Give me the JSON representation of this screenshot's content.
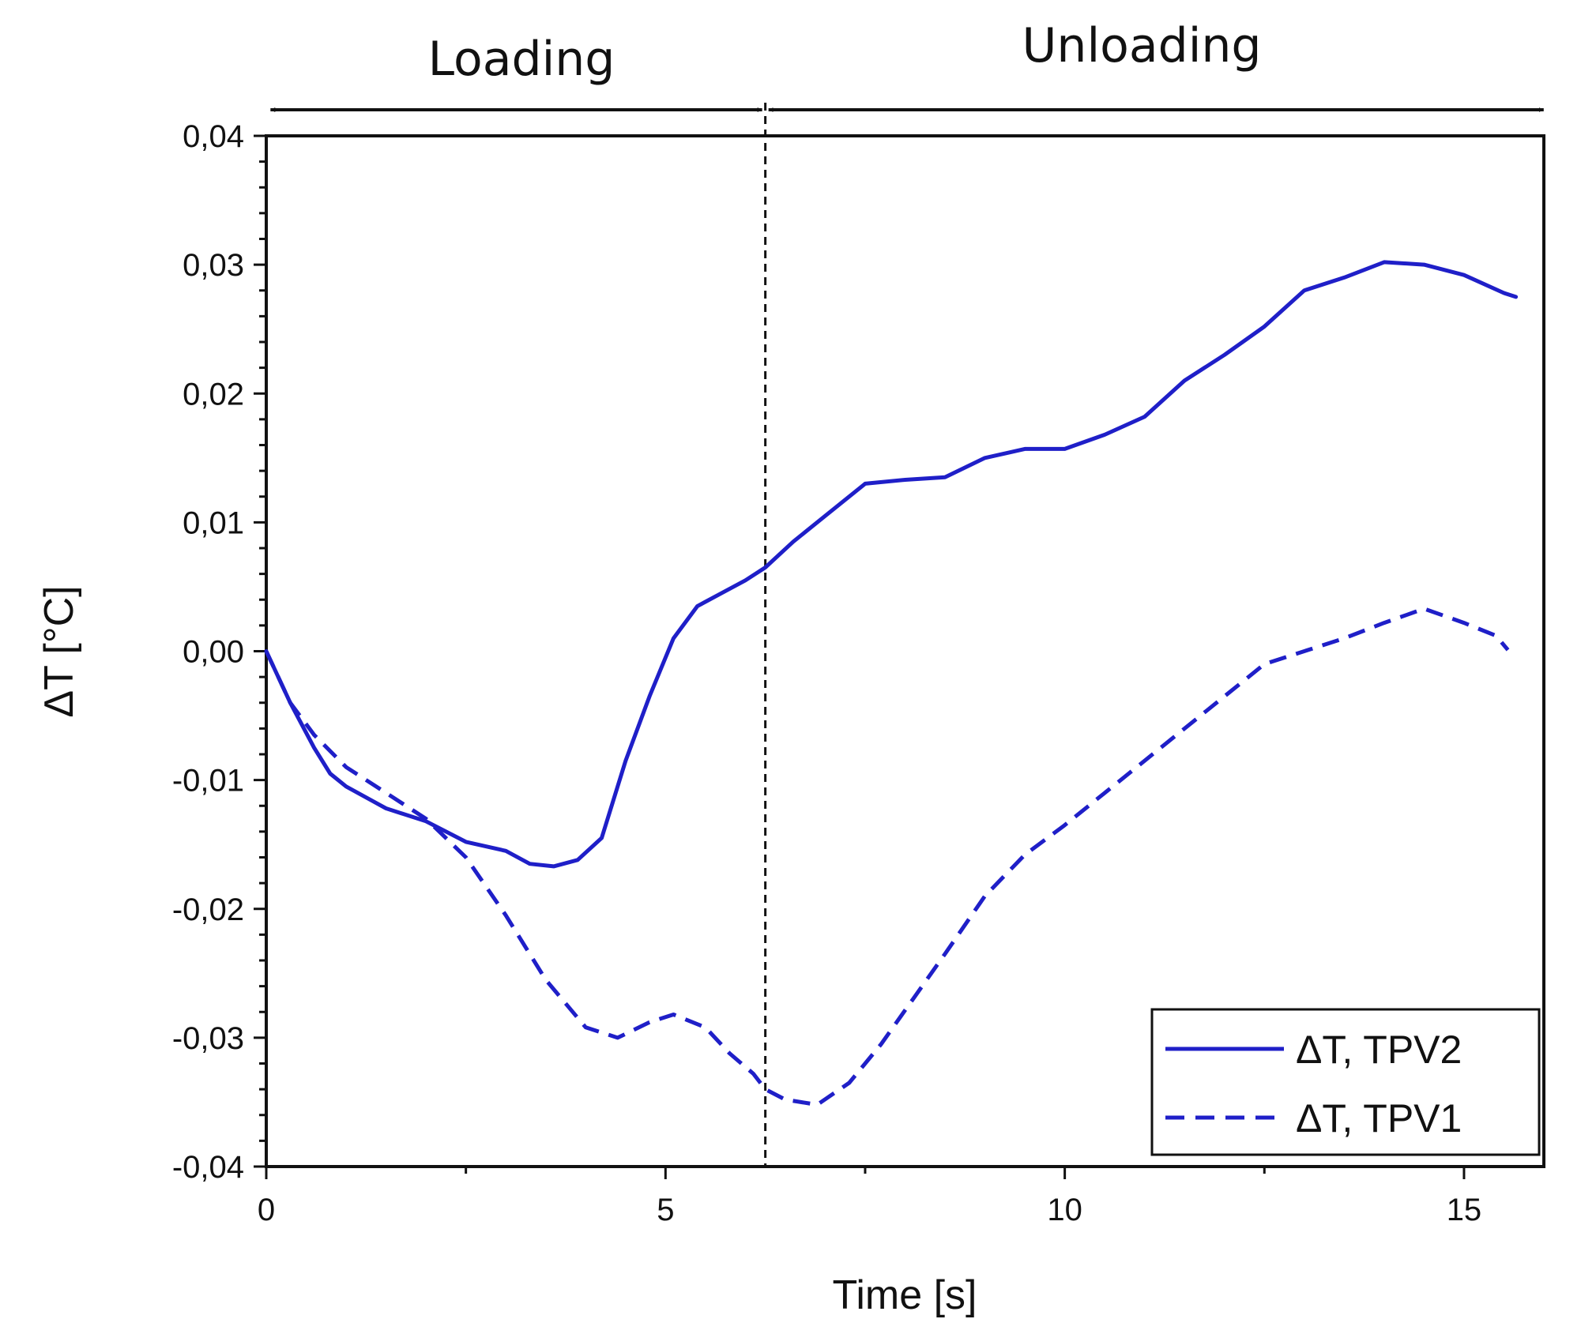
{
  "chart_data": {
    "type": "line",
    "xlabel": "Time [s]",
    "ylabel": "ΔT [°C]",
    "xlim": [
      0,
      16
    ],
    "ylim": [
      -0.04,
      0.04
    ],
    "x_ticks": [
      0,
      5,
      10,
      15
    ],
    "x_tick_labels": [
      "0",
      "5",
      "10",
      "15"
    ],
    "y_ticks": [
      -0.04,
      -0.03,
      -0.02,
      -0.01,
      0.0,
      0.01,
      0.02,
      0.03,
      0.04
    ],
    "y_tick_labels": [
      "-0,04",
      "-0,03",
      "-0,02",
      "-0,01",
      "0,00",
      "0,01",
      "0,02",
      "0,03",
      "0,04"
    ],
    "legend_position": "bottom-right",
    "phase_boundary_time": 6.25,
    "phases": [
      {
        "label": "Loading",
        "start": 0.3,
        "end": 6.25
      },
      {
        "label": "Unloading",
        "start": 6.25,
        "end": 15.8
      }
    ],
    "series": [
      {
        "name": "ΔT, TPV2",
        "style": "solid",
        "color": "#1f1fc8",
        "x": [
          0,
          0.3,
          0.6,
          0.8,
          1.0,
          1.5,
          2.0,
          2.5,
          3.0,
          3.3,
          3.6,
          3.9,
          4.2,
          4.5,
          4.8,
          5.1,
          5.4,
          5.7,
          6.0,
          6.25,
          6.6,
          7.0,
          7.5,
          8.0,
          8.5,
          9.0,
          9.5,
          10.0,
          10.5,
          11.0,
          11.5,
          12.0,
          12.5,
          13.0,
          13.5,
          14.0,
          14.5,
          15.0,
          15.5,
          15.65
        ],
        "y": [
          0.0,
          -0.004,
          -0.0075,
          -0.0095,
          -0.0105,
          -0.0122,
          -0.0132,
          -0.0148,
          -0.0155,
          -0.0165,
          -0.0167,
          -0.0162,
          -0.0145,
          -0.0085,
          -0.0035,
          0.001,
          0.0035,
          0.0045,
          0.0055,
          0.0065,
          0.0085,
          0.0105,
          0.013,
          0.0133,
          0.0135,
          0.015,
          0.0157,
          0.0157,
          0.0168,
          0.0182,
          0.021,
          0.023,
          0.0252,
          0.028,
          0.029,
          0.0302,
          0.03,
          0.0292,
          0.0278,
          0.0275
        ]
      },
      {
        "name": "ΔT, TPV1",
        "style": "dashed",
        "color": "#1f1fc8",
        "x": [
          0,
          0.3,
          0.6,
          1.0,
          1.5,
          2.0,
          2.5,
          3.0,
          3.5,
          4.0,
          4.4,
          4.8,
          5.1,
          5.5,
          5.8,
          6.1,
          6.25,
          6.5,
          6.9,
          7.3,
          7.7,
          8.1,
          8.5,
          9.0,
          9.5,
          10.0,
          10.5,
          11.0,
          11.5,
          12.0,
          12.5,
          13.0,
          13.5,
          14.0,
          14.5,
          15.0,
          15.4,
          15.55
        ],
        "y": [
          0.0,
          -0.004,
          -0.0065,
          -0.009,
          -0.011,
          -0.013,
          -0.016,
          -0.0205,
          -0.0255,
          -0.0292,
          -0.03,
          -0.0288,
          -0.0282,
          -0.0292,
          -0.0312,
          -0.0328,
          -0.034,
          -0.0348,
          -0.0352,
          -0.0335,
          -0.0305,
          -0.027,
          -0.0235,
          -0.019,
          -0.0158,
          -0.0135,
          -0.011,
          -0.0085,
          -0.006,
          -0.0035,
          -0.001,
          0.0,
          0.001,
          0.0022,
          0.0033,
          0.0022,
          0.0012,
          0.0001
        ]
      }
    ]
  }
}
